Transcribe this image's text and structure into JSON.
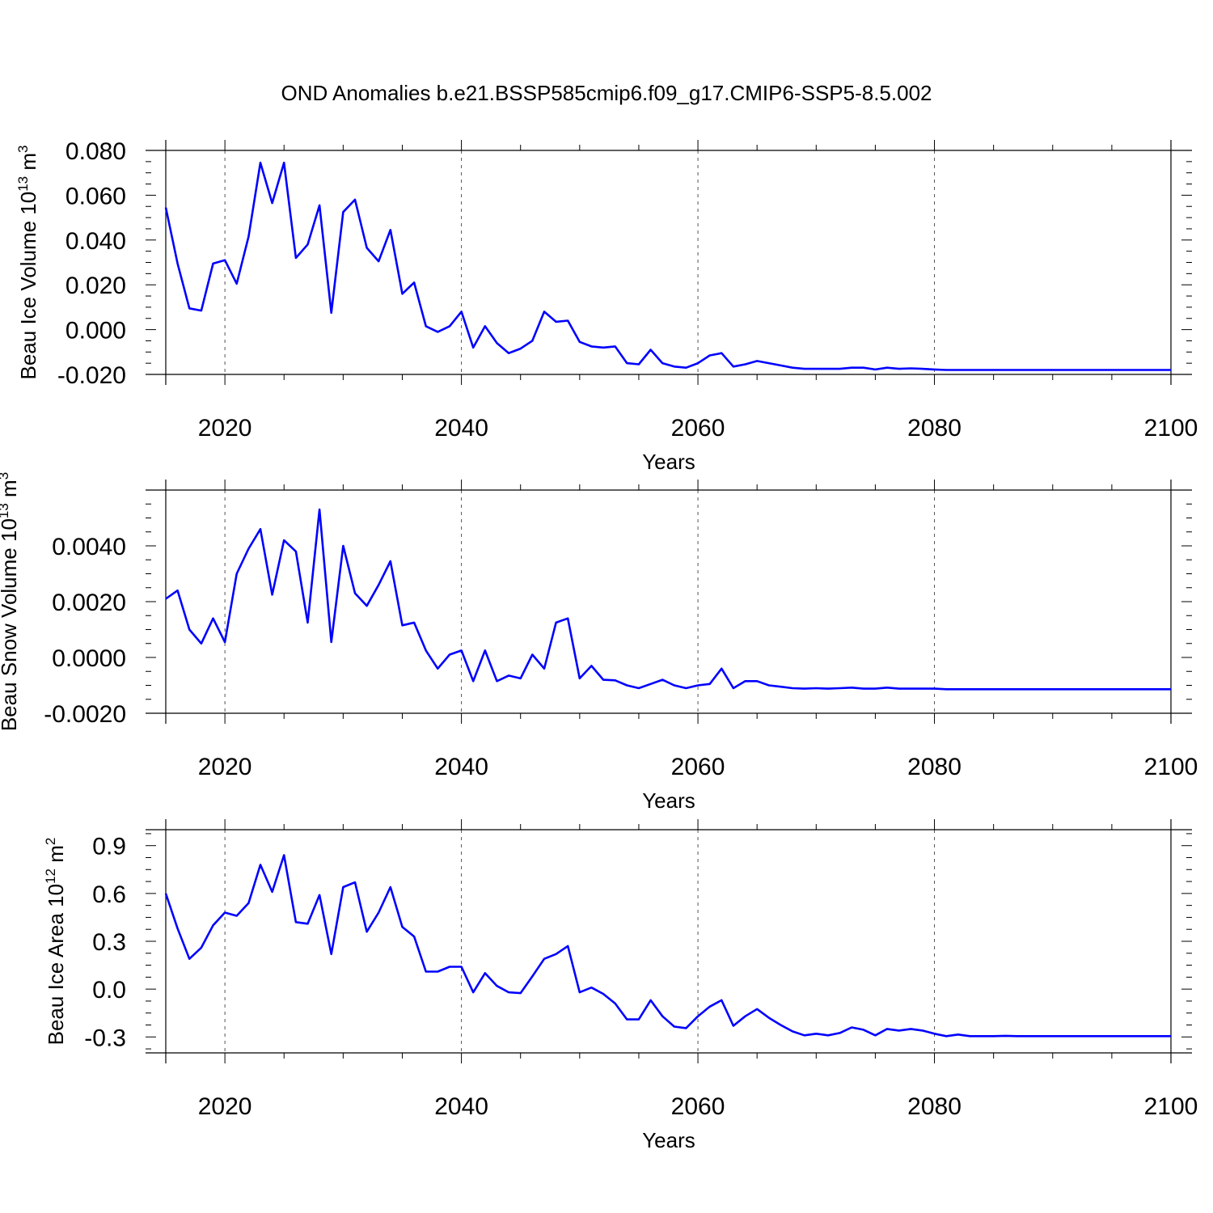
{
  "title": "OND Anomalies b.e21.BSSP585cmip6.f09_g17.CMIP6-SSP5-8.5.002",
  "chart_data": [
    {
      "type": "line",
      "ylabel": "Beau Ice Volume 10",
      "ylabel_exp": "13",
      "ylabel_unit": " m",
      "ylabel_unit_exp": "3",
      "xlabel": "Years",
      "xlim": [
        2015,
        2100
      ],
      "ylim": [
        -0.02,
        0.08
      ],
      "xticks": [
        2020,
        2040,
        2060,
        2080,
        2100
      ],
      "xtick_labels": [
        "2020",
        "2040",
        "2060",
        "2080",
        "2100"
      ],
      "yticks": [
        -0.02,
        0.0,
        0.02,
        0.04,
        0.06,
        0.08
      ],
      "ytick_labels": [
        "-0.020",
        "0.000",
        "0.020",
        "0.040",
        "0.060",
        "0.080"
      ],
      "grid": "dashed vertical at major x ticks",
      "color": "#0000ff",
      "x": [
        2015,
        2016,
        2017,
        2018,
        2019,
        2020,
        2021,
        2022,
        2023,
        2024,
        2025,
        2026,
        2027,
        2028,
        2029,
        2030,
        2031,
        2032,
        2033,
        2034,
        2035,
        2036,
        2037,
        2038,
        2039,
        2040,
        2041,
        2042,
        2043,
        2044,
        2045,
        2046,
        2047,
        2048,
        2049,
        2050,
        2051,
        2052,
        2053,
        2054,
        2055,
        2056,
        2057,
        2058,
        2059,
        2060,
        2061,
        2062,
        2063,
        2064,
        2065,
        2066,
        2067,
        2068,
        2069,
        2070,
        2071,
        2072,
        2073,
        2074,
        2075,
        2076,
        2077,
        2078,
        2079,
        2080,
        2081,
        2082,
        2083,
        2084,
        2085,
        2086,
        2087,
        2088,
        2089,
        2090,
        2091,
        2092,
        2093,
        2094,
        2095,
        2096,
        2097,
        2098,
        2099,
        2100
      ],
      "values": [
        0.0545,
        0.0295,
        0.0095,
        0.0085,
        0.0295,
        0.031,
        0.0205,
        0.0415,
        0.0745,
        0.0565,
        0.0745,
        0.032,
        0.038,
        0.0555,
        0.0075,
        0.0525,
        0.058,
        0.0365,
        0.0305,
        0.0445,
        0.016,
        0.021,
        0.0015,
        -0.001,
        0.0015,
        0.008,
        -0.008,
        0.0015,
        -0.006,
        -0.0105,
        -0.0085,
        -0.005,
        0.008,
        0.0035,
        0.004,
        -0.0055,
        -0.0075,
        -0.008,
        -0.0075,
        -0.015,
        -0.0155,
        -0.009,
        -0.015,
        -0.0165,
        -0.017,
        -0.015,
        -0.0115,
        -0.0105,
        -0.0165,
        -0.0155,
        -0.014,
        -0.015,
        -0.016,
        -0.017,
        -0.0175,
        -0.0175,
        -0.0175,
        -0.0175,
        -0.017,
        -0.017,
        -0.0178,
        -0.017,
        -0.0175,
        -0.0173,
        -0.0175,
        -0.0178,
        -0.018,
        -0.018,
        -0.018,
        -0.018,
        -0.018,
        -0.018,
        -0.018,
        -0.018,
        -0.018,
        -0.018,
        -0.018,
        -0.018,
        -0.018,
        -0.018,
        -0.018,
        -0.018,
        -0.018,
        -0.018,
        -0.018,
        -0.018
      ]
    },
    {
      "type": "line",
      "ylabel": "Beau Snow Volume 10",
      "ylabel_exp": "13",
      "ylabel_unit": " m",
      "ylabel_unit_exp": "3",
      "xlabel": "Years",
      "xlim": [
        2015,
        2100
      ],
      "ylim": [
        -0.002,
        0.006
      ],
      "xticks": [
        2020,
        2040,
        2060,
        2080,
        2100
      ],
      "xtick_labels": [
        "2020",
        "2040",
        "2060",
        "2080",
        "2100"
      ],
      "yticks": [
        -0.002,
        0.0,
        0.002,
        0.004
      ],
      "ytick_labels": [
        "-0.0020",
        "0.0000",
        "0.0020",
        "0.0040"
      ],
      "grid": "dashed vertical at major x ticks",
      "color": "#0000ff",
      "x": [
        2015,
        2016,
        2017,
        2018,
        2019,
        2020,
        2021,
        2022,
        2023,
        2024,
        2025,
        2026,
        2027,
        2028,
        2029,
        2030,
        2031,
        2032,
        2033,
        2034,
        2035,
        2036,
        2037,
        2038,
        2039,
        2040,
        2041,
        2042,
        2043,
        2044,
        2045,
        2046,
        2047,
        2048,
        2049,
        2050,
        2051,
        2052,
        2053,
        2054,
        2055,
        2056,
        2057,
        2058,
        2059,
        2060,
        2061,
        2062,
        2063,
        2064,
        2065,
        2066,
        2067,
        2068,
        2069,
        2070,
        2071,
        2072,
        2073,
        2074,
        2075,
        2076,
        2077,
        2078,
        2079,
        2080,
        2081,
        2082,
        2083,
        2084,
        2085,
        2086,
        2087,
        2088,
        2089,
        2090,
        2091,
        2092,
        2093,
        2094,
        2095,
        2096,
        2097,
        2098,
        2099,
        2100
      ],
      "values": [
        0.0021,
        0.0024,
        0.001,
        0.0005,
        0.0014,
        0.00055,
        0.003,
        0.0039,
        0.0046,
        0.00225,
        0.0042,
        0.0038,
        0.00125,
        0.0053,
        0.00055,
        0.004,
        0.0023,
        0.00185,
        0.0026,
        0.00345,
        0.00115,
        0.00125,
        0.00025,
        -0.0004,
        0.0001,
        0.00025,
        -0.00085,
        0.00025,
        -0.00085,
        -0.00065,
        -0.00075,
        0.0001,
        -0.0004,
        0.00125,
        0.0014,
        -0.00075,
        -0.0003,
        -0.0008,
        -0.00082,
        -0.001,
        -0.0011,
        -0.00095,
        -0.0008,
        -0.001,
        -0.0011,
        -0.001,
        -0.00095,
        -0.0004,
        -0.0011,
        -0.00085,
        -0.00085,
        -0.001,
        -0.00105,
        -0.0011,
        -0.00112,
        -0.0011,
        -0.00112,
        -0.0011,
        -0.00108,
        -0.00112,
        -0.00112,
        -0.00108,
        -0.00112,
        -0.00112,
        -0.00112,
        -0.00112,
        -0.00114,
        -0.00114,
        -0.00114,
        -0.00114,
        -0.00114,
        -0.00114,
        -0.00114,
        -0.00114,
        -0.00114,
        -0.00114,
        -0.00114,
        -0.00114,
        -0.00114,
        -0.00114,
        -0.00114,
        -0.00114,
        -0.00114,
        -0.00114,
        -0.00114,
        -0.00114
      ]
    },
    {
      "type": "line",
      "ylabel": "Beau Ice Area 10",
      "ylabel_exp": "12",
      "ylabel_unit": " m",
      "ylabel_unit_exp": "2",
      "xlabel": "Years",
      "xlim": [
        2015,
        2100
      ],
      "ylim": [
        -0.4,
        1.0
      ],
      "xticks": [
        2020,
        2040,
        2060,
        2080,
        2100
      ],
      "xtick_labels": [
        "2020",
        "2040",
        "2060",
        "2080",
        "2100"
      ],
      "yticks": [
        -0.3,
        0.0,
        0.3,
        0.6,
        0.9
      ],
      "ytick_labels": [
        "-0.3",
        "0.0",
        "0.3",
        "0.6",
        "0.9"
      ],
      "grid": "dashed vertical at major x ticks",
      "color": "#0000ff",
      "x": [
        2015,
        2016,
        2017,
        2018,
        2019,
        2020,
        2021,
        2022,
        2023,
        2024,
        2025,
        2026,
        2027,
        2028,
        2029,
        2030,
        2031,
        2032,
        2033,
        2034,
        2035,
        2036,
        2037,
        2038,
        2039,
        2040,
        2041,
        2042,
        2043,
        2044,
        2045,
        2046,
        2047,
        2048,
        2049,
        2050,
        2051,
        2052,
        2053,
        2054,
        2055,
        2056,
        2057,
        2058,
        2059,
        2060,
        2061,
        2062,
        2063,
        2064,
        2065,
        2066,
        2067,
        2068,
        2069,
        2070,
        2071,
        2072,
        2073,
        2074,
        2075,
        2076,
        2077,
        2078,
        2079,
        2080,
        2081,
        2082,
        2083,
        2084,
        2085,
        2086,
        2087,
        2088,
        2089,
        2090,
        2091,
        2092,
        2093,
        2094,
        2095,
        2096,
        2097,
        2098,
        2099,
        2100
      ],
      "values": [
        0.6,
        0.38,
        0.19,
        0.26,
        0.4,
        0.48,
        0.46,
        0.54,
        0.78,
        0.61,
        0.84,
        0.42,
        0.41,
        0.59,
        0.22,
        0.64,
        0.67,
        0.36,
        0.48,
        0.64,
        0.39,
        0.33,
        0.11,
        0.11,
        0.14,
        0.14,
        -0.02,
        0.1,
        0.02,
        -0.02,
        -0.025,
        0.08,
        0.19,
        0.22,
        0.27,
        -0.02,
        0.01,
        -0.03,
        -0.09,
        -0.19,
        -0.19,
        -0.07,
        -0.17,
        -0.235,
        -0.245,
        -0.17,
        -0.11,
        -0.07,
        -0.23,
        -0.17,
        -0.125,
        -0.18,
        -0.225,
        -0.265,
        -0.29,
        -0.28,
        -0.29,
        -0.275,
        -0.24,
        -0.255,
        -0.29,
        -0.25,
        -0.26,
        -0.25,
        -0.26,
        -0.28,
        -0.295,
        -0.285,
        -0.295,
        -0.295,
        -0.295,
        -0.293,
        -0.295,
        -0.295,
        -0.295,
        -0.295,
        -0.295,
        -0.295,
        -0.295,
        -0.295,
        -0.295,
        -0.295,
        -0.295,
        -0.295,
        -0.295,
        -0.295
      ]
    }
  ]
}
